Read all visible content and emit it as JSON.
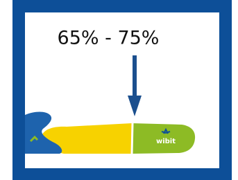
{
  "label": "65% - 75%",
  "logo": "wibit"
}
